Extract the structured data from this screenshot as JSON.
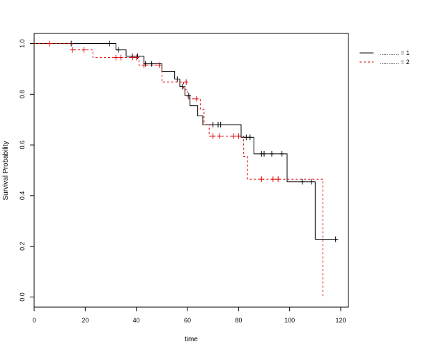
{
  "chart_data": {
    "type": "line",
    "title": "",
    "xlabel": "time",
    "ylabel": "Survival Probability",
    "xlim": [
      0,
      123
    ],
    "ylim": [
      -0.04,
      1.04
    ],
    "x_ticks": [
      0,
      20,
      40,
      60,
      80,
      100,
      120
    ],
    "y_ticks": [
      0.0,
      0.2,
      0.4,
      0.6,
      0.8,
      1.0
    ],
    "x_tick_labels": [
      "0",
      "20",
      "40",
      "60",
      "80",
      "100",
      "120"
    ],
    "y_tick_labels": [
      "0.0",
      "0.2",
      "0.4",
      "0.6",
      "0.8",
      "1.0"
    ],
    "grid": false,
    "legend_position": "top-right",
    "series": [
      {
        "name": "........... = 1",
        "color": "#000000",
        "line_style": "solid",
        "step_points": [
          [
            0,
            1.0
          ],
          [
            32,
            1.0
          ],
          [
            32,
            0.975
          ],
          [
            36,
            0.975
          ],
          [
            36,
            0.95
          ],
          [
            43,
            0.95
          ],
          [
            43,
            0.92
          ],
          [
            50,
            0.92
          ],
          [
            50,
            0.89
          ],
          [
            55,
            0.89
          ],
          [
            55,
            0.86
          ],
          [
            57,
            0.86
          ],
          [
            57,
            0.83
          ],
          [
            59,
            0.83
          ],
          [
            59,
            0.795
          ],
          [
            61,
            0.795
          ],
          [
            61,
            0.755
          ],
          [
            64,
            0.755
          ],
          [
            64,
            0.715
          ],
          [
            66,
            0.715
          ],
          [
            66,
            0.68
          ],
          [
            81,
            0.68
          ],
          [
            81,
            0.63
          ],
          [
            86,
            0.63
          ],
          [
            86,
            0.565
          ],
          [
            99,
            0.565
          ],
          [
            99,
            0.455
          ],
          [
            110,
            0.455
          ],
          [
            110,
            0.228
          ],
          [
            119,
            0.228
          ]
        ],
        "censor_times": [
          [
            14.5,
            1.0
          ],
          [
            29.5,
            1.0
          ],
          [
            33,
            0.975
          ],
          [
            38.5,
            0.95
          ],
          [
            40.5,
            0.95
          ],
          [
            43.5,
            0.92
          ],
          [
            46,
            0.92
          ],
          [
            56,
            0.86
          ],
          [
            58,
            0.83
          ],
          [
            60.5,
            0.795
          ],
          [
            70,
            0.68
          ],
          [
            72,
            0.68
          ],
          [
            73,
            0.68
          ],
          [
            83,
            0.63
          ],
          [
            84.5,
            0.63
          ],
          [
            89,
            0.565
          ],
          [
            90,
            0.565
          ],
          [
            93,
            0.565
          ],
          [
            97,
            0.565
          ],
          [
            105,
            0.455
          ],
          [
            108.5,
            0.455
          ],
          [
            118,
            0.228
          ]
        ]
      },
      {
        "name": "........... = 2",
        "color": "#dd0000",
        "line_style": "dashed",
        "step_points": [
          [
            0,
            1.0
          ],
          [
            15,
            1.0
          ],
          [
            15,
            0.975
          ],
          [
            23,
            0.975
          ],
          [
            23,
            0.945
          ],
          [
            41,
            0.945
          ],
          [
            41,
            0.915
          ],
          [
            50,
            0.915
          ],
          [
            50,
            0.848
          ],
          [
            58.5,
            0.848
          ],
          [
            58.5,
            0.818
          ],
          [
            60,
            0.818
          ],
          [
            60,
            0.782
          ],
          [
            65,
            0.782
          ],
          [
            65,
            0.74
          ],
          [
            66.5,
            0.74
          ],
          [
            66.5,
            0.68
          ],
          [
            68.5,
            0.68
          ],
          [
            68.5,
            0.635
          ],
          [
            82,
            0.635
          ],
          [
            82,
            0.555
          ],
          [
            83.5,
            0.555
          ],
          [
            83.5,
            0.465
          ],
          [
            113,
            0.465
          ],
          [
            113,
            0.0
          ]
        ],
        "censor_times": [
          [
            6,
            1.0
          ],
          [
            15,
            0.975
          ],
          [
            19.5,
            0.975
          ],
          [
            32,
            0.945
          ],
          [
            34,
            0.945
          ],
          [
            38.5,
            0.945
          ],
          [
            40,
            0.945
          ],
          [
            43,
            0.915
          ],
          [
            49,
            0.915
          ],
          [
            59.5,
            0.848
          ],
          [
            63.5,
            0.782
          ],
          [
            70,
            0.635
          ],
          [
            72.5,
            0.635
          ],
          [
            78,
            0.635
          ],
          [
            80,
            0.635
          ],
          [
            89,
            0.465
          ],
          [
            93.5,
            0.465
          ],
          [
            95.5,
            0.465
          ]
        ]
      }
    ]
  }
}
